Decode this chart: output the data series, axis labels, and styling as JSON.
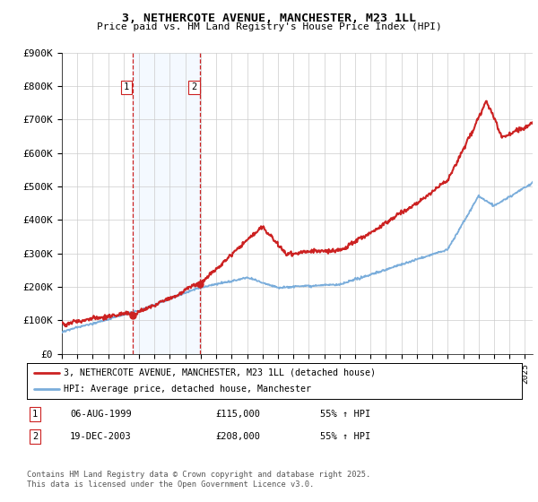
{
  "title": "3, NETHERCOTE AVENUE, MANCHESTER, M23 1LL",
  "subtitle": "Price paid vs. HM Land Registry's House Price Index (HPI)",
  "ylim": [
    0,
    900000
  ],
  "yticks": [
    0,
    100000,
    200000,
    300000,
    400000,
    500000,
    600000,
    700000,
    800000,
    900000
  ],
  "ytick_labels": [
    "£0",
    "£100K",
    "£200K",
    "£300K",
    "£400K",
    "£500K",
    "£600K",
    "£700K",
    "£800K",
    "£900K"
  ],
  "hpi_color": "#7aaddb",
  "price_color": "#cc2222",
  "shade_color": "#ddeeff",
  "vline_color": "#cc2222",
  "background_color": "#ffffff",
  "grid_color": "#cccccc",
  "legend_label_price": "3, NETHERCOTE AVENUE, MANCHESTER, M23 1LL (detached house)",
  "legend_label_hpi": "HPI: Average price, detached house, Manchester",
  "sale1_date": "06-AUG-1999",
  "sale1_price": "£115,000",
  "sale1_hpi": "55% ↑ HPI",
  "sale2_date": "19-DEC-2003",
  "sale2_price": "£208,000",
  "sale2_hpi": "55% ↑ HPI",
  "footnote": "Contains HM Land Registry data © Crown copyright and database right 2025.\nThis data is licensed under the Open Government Licence v3.0.",
  "sale1_x": 1999.59,
  "sale2_x": 2003.97,
  "sale1_y": 115000,
  "sale2_y": 208000,
  "vline1_x": 1999.59,
  "vline2_x": 2003.97,
  "shade_x1": 1999.59,
  "shade_x2": 2003.97,
  "xmin": 1995,
  "xmax": 2025.5
}
